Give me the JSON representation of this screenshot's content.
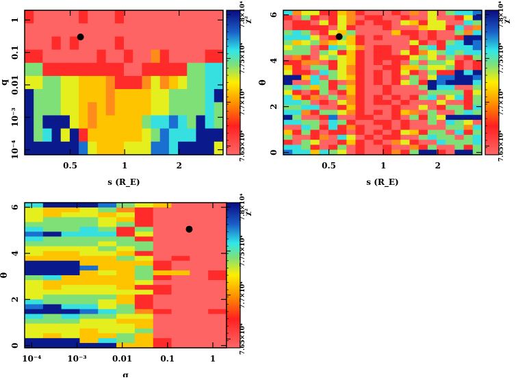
{
  "palette": [
    "#ff6464",
    "#ff2a2a",
    "#ff8c1a",
    "#ffc400",
    "#e6ef1e",
    "#80e078",
    "#36e0e0",
    "#0a1a8c",
    "#1a70d0"
  ],
  "colorbar": {
    "label": "χ²",
    "ticks": [
      "7.65×10⁴",
      "7.7×10⁴",
      "7.75×10⁴",
      "7.8×10⁴"
    ],
    "tick_values": [
      76500,
      77000,
      77500,
      78000
    ],
    "range": [
      76400,
      78050
    ]
  },
  "chart_data": [
    {
      "type": "heatmap",
      "title": "",
      "xlabel": "s (R_E)",
      "ylabel": "q",
      "x_ticks": [
        "0.5",
        "1",
        "2"
      ],
      "x_tick_values": [
        0.5,
        1,
        2
      ],
      "x_scale": "log",
      "y_ticks": [
        "1",
        "0.1",
        "0.01",
        "10⁻³",
        "10⁻⁴"
      ],
      "y_tick_values": [
        1,
        0.1,
        0.01,
        0.001,
        0.0001
      ],
      "y_scale": "log",
      "xlim": [
        0.28,
        3.5
      ],
      "ylim": [
        7e-05,
        2
      ],
      "best_fit": {
        "x": 0.57,
        "y": 0.3
      },
      "cell_levels": [
        "1000001000100000000000",
        "0000000000000000000000",
        "0001010000100000000000",
        "1100000010010021000011",
        "5511111111100111115566",
        "4455443332111242345566",
        "7555443332333344555567",
        "7555443232333344555565",
        "7577743233333566865765",
        "7567471333333458666777",
        "7777778433344488677774"
      ]
    },
    {
      "type": "heatmap",
      "title": "",
      "xlabel": "s (R_E)",
      "ylabel": "θ",
      "x_ticks": [
        "0.5",
        "1",
        "2"
      ],
      "x_tick_values": [
        0.5,
        1,
        2
      ],
      "x_scale": "log",
      "y_ticks": [
        "0",
        "2",
        "4",
        "6"
      ],
      "y_tick_values": [
        0,
        2,
        4,
        6
      ],
      "xlim": [
        0.28,
        3.5
      ],
      "ylim": [
        -0.1,
        6.2
      ],
      "best_fit": {
        "x": 0.57,
        "y": 5.05
      },
      "cell_levels": [
        "6244113210001020405668",
        "1051014201100100400147",
        "0110414210110431440065",
        "0111104100010003441602",
        "5650143500003110100526",
        "6664015310100010100177",
        "5345234310000041015678",
        "4550165420110015616668",
        "5550541310110412456566",
        "0210454310111145405015",
        "1122014310101050554101",
        "3105514210011335445101",
        "4110654210101410511767",
        "7736054310101050488778",
        "7006510210101451787776",
        "5653515310010005766005",
        "4101501310010000555514",
        "6312050210101015604615",
        "6650104210110100040015",
        "5566001310001004015516",
        "6621554210101320500565",
        "7500180011001051547777",
        "6655065100110100506540",
        "0065161210010100005526",
        "3151011010101431550615",
        "5001206401011005655056",
        "1054001310102410065556",
        "6651015010010021500515",
        "8663654010012157710775"
      ]
    },
    {
      "type": "heatmap",
      "title": "",
      "xlabel": "q",
      "ylabel": "θ",
      "x_ticks": [
        "10⁻⁴",
        "10⁻³",
        "0.01",
        "0.1",
        "1"
      ],
      "x_tick_values": [
        0.0001,
        0.001,
        0.01,
        0.1,
        1
      ],
      "x_scale": "log",
      "y_ticks": [
        "0",
        "2",
        "4",
        "6"
      ],
      "y_tick_values": [
        0,
        2,
        4,
        6
      ],
      "xlim": [
        7e-05,
        2
      ],
      "ylim": [
        -0.1,
        6.2
      ],
      "best_fit": {
        "x": 0.3,
        "y": 5.05
      },
      "cell_levels": [
        "67778543000",
        "43345210000",
        "43443410000",
        "45554310000",
        "55554510000",
        "65565150000",
        "87666140000",
        "65555510000",
        "55554550000",
        "44445450000",
        "43344310000",
        "33333540100",
        "77733331000",
        "77783351000",
        "77734353301",
        "56333351001",
        "43333340000",
        "43444311000",
        "44444441000",
        "45555310000",
        "65554310000",
        "87664510000",
        "77786521001",
        "65655440000",
        "55544330000",
        "44444430000",
        "44434450000",
        "43433530000",
        "77736531000",
        "77777331000"
      ]
    }
  ]
}
